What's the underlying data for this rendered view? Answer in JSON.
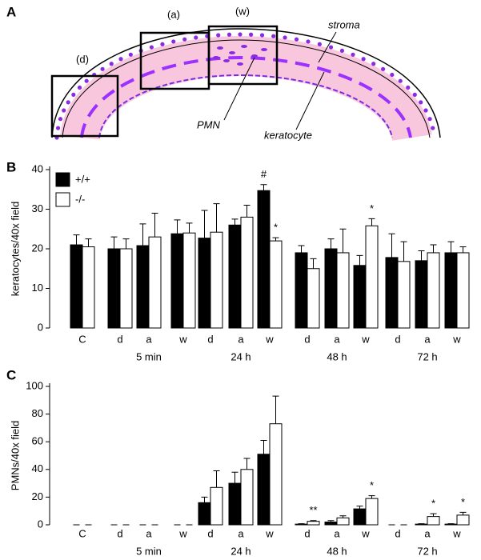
{
  "diagram": {
    "panel_label": "A",
    "boxes": [
      "(d)",
      "(a)",
      "(w)"
    ],
    "labels": [
      "stroma",
      "PMN",
      "keratocyte"
    ]
  },
  "chart_data": [
    {
      "type": "bar",
      "panel_label": "B",
      "y_label": "keratocytes/40x field",
      "categories": [
        "C",
        "d",
        "a",
        "w",
        "d",
        "a",
        "w",
        "d",
        "a",
        "w",
        "d",
        "a",
        "w"
      ],
      "group_labels": [
        null,
        null,
        "5 min",
        null,
        null,
        "24 h",
        null,
        null,
        "48 h",
        null,
        null,
        "72 h",
        null
      ],
      "series": [
        {
          "name": "+/+",
          "color": "#000000",
          "values": [
            21,
            20,
            20.8,
            23.8,
            22.7,
            26,
            34.7,
            19,
            20,
            15.8,
            17.8,
            17,
            19
          ],
          "errors": [
            2.5,
            3,
            5.5,
            3.5,
            7,
            1.5,
            1.5,
            1.8,
            2.5,
            2.5,
            6,
            2.5,
            2.8
          ],
          "markers": [
            null,
            null,
            null,
            null,
            null,
            null,
            "#",
            null,
            null,
            null,
            null,
            null,
            null
          ]
        },
        {
          "name": "-/-",
          "color": "#ffffff",
          "values": [
            20.5,
            20,
            23,
            24,
            24.2,
            28,
            22,
            15,
            19,
            25.8,
            16.8,
            19,
            19
          ],
          "errors": [
            2,
            2.5,
            6,
            2.5,
            7.2,
            3,
            0.8,
            2.5,
            6,
            1.8,
            5,
            2,
            1.5
          ],
          "markers": [
            null,
            null,
            null,
            null,
            null,
            null,
            "*",
            null,
            null,
            "*",
            null,
            null,
            null
          ]
        }
      ],
      "ylim": [
        0,
        40
      ],
      "yticks": [
        0,
        10,
        20,
        30,
        40
      ],
      "legend": "top-left"
    },
    {
      "type": "bar",
      "panel_label": "C",
      "y_label": "PMNs/40x field",
      "categories": [
        "C",
        "d",
        "a",
        "w",
        "d",
        "a",
        "w",
        "d",
        "a",
        "w",
        "d",
        "a",
        "w"
      ],
      "group_labels": [
        null,
        null,
        "5 min",
        null,
        null,
        "24 h",
        null,
        null,
        "48 h",
        null,
        null,
        "72 h",
        null
      ],
      "series": [
        {
          "name": "+/+",
          "color": "#000000",
          "values": [
            0,
            0,
            0,
            0,
            16,
            30,
            51,
            0.5,
            2,
            11.5,
            0,
            0.5,
            0.5
          ],
          "errors": [
            0,
            0,
            0,
            0,
            4,
            8,
            10,
            0.3,
            1,
            2,
            0,
            0.3,
            0.3
          ],
          "markers": [
            null,
            null,
            null,
            null,
            null,
            null,
            null,
            null,
            null,
            null,
            null,
            null,
            null
          ]
        },
        {
          "name": "-/-",
          "color": "#ffffff",
          "values": [
            0,
            0,
            0,
            0,
            27,
            40,
            73,
            2.5,
            5,
            19,
            0,
            6,
            7
          ],
          "errors": [
            0,
            0,
            0,
            0,
            12,
            8,
            20,
            0.5,
            1.5,
            2,
            0,
            2,
            2
          ],
          "markers": [
            null,
            null,
            null,
            null,
            null,
            null,
            null,
            "**",
            null,
            "*",
            null,
            "*",
            "*"
          ]
        }
      ],
      "ylim": [
        0,
        100
      ],
      "yticks": [
        0,
        20,
        40,
        60,
        80,
        100
      ]
    }
  ]
}
